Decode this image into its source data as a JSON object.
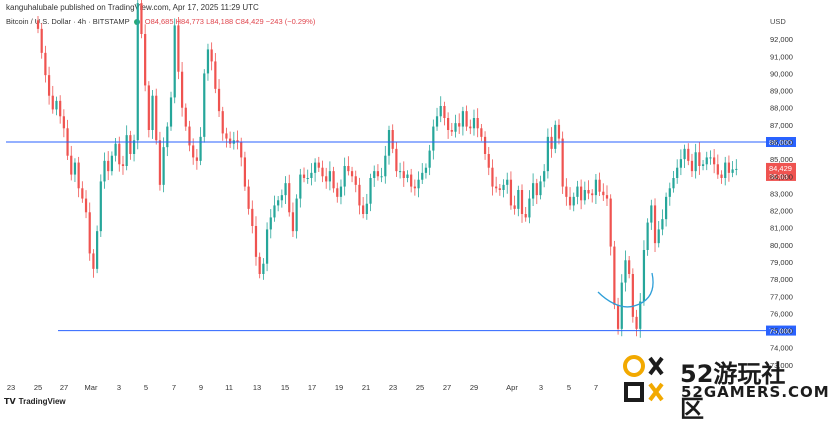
{
  "header": {
    "published": "kanguhalubale published on TradingView.com, Apr 17, 2025 11:29 UTC"
  },
  "legend": {
    "symbol": "Bitcoin / U.S. Dollar · 4h · BITSTAMP",
    "open": "O84,685",
    "high": "H84,773",
    "low": "L84,188",
    "close": "C84,429",
    "change": "−243 (−0.29%)"
  },
  "currency": "USD",
  "logo": "TradingView",
  "watermark": {
    "title": "52游玩社区",
    "subtitle": "52GAMERS.COM"
  },
  "colors": {
    "up": "#26a69a",
    "down": "#ef5350",
    "level_line": "#2962ff",
    "annotation": "#2f9fd8"
  },
  "chart_data": {
    "type": "candlestick",
    "timeframe": "4h",
    "ylim": [
      72000,
      93000
    ],
    "y_ticks": [
      "92,000",
      "91,000",
      "90,000",
      "89,000",
      "88,000",
      "87,000",
      "86,000",
      "85,000",
      "84,000",
      "83,000",
      "82,000",
      "81,000",
      "80,000",
      "79,000",
      "78,000",
      "77,000",
      "76,000",
      "75,000",
      "74,000",
      "73,000"
    ],
    "x_ticks": [
      "23",
      "25",
      "27",
      "Mar",
      "3",
      "5",
      "7",
      "9",
      "11",
      "13",
      "15",
      "17",
      "19",
      "21",
      "23",
      "25",
      "27",
      "29",
      "Apr",
      "3",
      "5",
      "7"
    ],
    "horizontal_levels": [
      86000,
      75000
    ],
    "level_labels": [
      "86,000",
      "75,000"
    ],
    "last_price": 84429,
    "last_price_label": "84,429",
    "countdown": "30:03",
    "closes": [
      92600,
      91200,
      89900,
      88700,
      87900,
      88400,
      87500,
      86800,
      85200,
      84100,
      84800,
      83300,
      82700,
      81900,
      79500,
      78600,
      80800,
      83700,
      84900,
      84300,
      85200,
      85900,
      84700,
      84600,
      86400,
      85300,
      86100,
      94100,
      92300,
      89300,
      86700,
      88700,
      86100,
      83500,
      85700,
      86900,
      88600,
      92800,
      90100,
      88000,
      86900,
      85800,
      85100,
      84900,
      86300,
      90000,
      91400,
      90700,
      89100,
      87800,
      86500,
      86200,
      85900,
      86100,
      86000,
      85100,
      83400,
      82100,
      81100,
      79300,
      78300,
      78900,
      80900,
      81600,
      82300,
      82600,
      82900,
      83600,
      81900,
      80800,
      82700,
      84100,
      83900,
      83900,
      84200,
      84800,
      84500,
      84000,
      83700,
      84300,
      83300,
      82800,
      83400,
      84600,
      84300,
      84000,
      83500,
      82300,
      81800,
      82400,
      83900,
      84300,
      84000,
      84000,
      85200,
      86700,
      85600,
      84300,
      84300,
      83900,
      84100,
      83400,
      83300,
      83800,
      84200,
      84500,
      85500,
      86900,
      87500,
      88100,
      87400,
      86700,
      86600,
      87100,
      86900,
      87800,
      86900,
      86800,
      87400,
      86800,
      86300,
      85300,
      84500,
      83400,
      83300,
      83200,
      83500,
      83800,
      82300,
      82100,
      83200,
      81800,
      81600,
      82700,
      83600,
      82900,
      83700,
      84300,
      86300,
      85600,
      87000,
      86200,
      83400,
      82800,
      82300,
      82800,
      83400,
      82600,
      83200,
      83000,
      82900,
      83800,
      83100,
      82900,
      82700,
      79900,
      76500,
      75100,
      77800,
      79100,
      78300,
      75800,
      75100,
      76700,
      79700,
      81300,
      82300,
      80100,
      80900,
      81500,
      82800,
      83300,
      83900,
      84500,
      85000,
      85600,
      84900,
      84300,
      85400,
      84600,
      84700,
      85100,
      85100,
      84700,
      84100,
      83900,
      84800,
      84200,
      84400,
      84429
    ]
  }
}
